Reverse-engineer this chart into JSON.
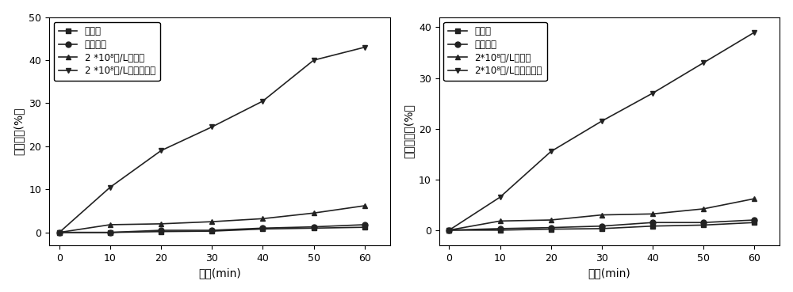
{
  "x": [
    0,
    10,
    20,
    30,
    40,
    50,
    60
  ],
  "chart1": {
    "ylabel": "磺胺嘧啶(%）",
    "xlabel": "时间(min)",
    "ylim": [
      -3,
      50
    ],
    "yticks": [
      0,
      10,
      20,
      30,
      40,
      50
    ],
    "series": {
      "dark_reaction": [
        0,
        0,
        0.2,
        0.3,
        0.8,
        1.0,
        1.2
      ],
      "direct_photolysis": [
        0,
        0,
        0.5,
        0.5,
        1.0,
        1.3,
        1.8
      ],
      "algae_dark": [
        0,
        1.8,
        2.0,
        2.5,
        3.2,
        4.5,
        6.2
      ],
      "algae_photo": [
        0,
        10.5,
        19.0,
        24.5,
        30.5,
        40.0,
        43.0
      ]
    },
    "legend": [
      "暗反应",
      "直接光解",
      "2 *10⁸个/L暗反应",
      "2 *10⁸个/L光催化反应"
    ]
  },
  "chart2": {
    "ylabel": "磺胺甲氧嗪(%）",
    "xlabel": "时间(min)",
    "ylim": [
      -3,
      42
    ],
    "yticks": [
      0,
      10,
      20,
      30,
      40
    ],
    "series": {
      "dark_reaction": [
        0,
        0,
        0.2,
        0.3,
        0.8,
        1.0,
        1.5
      ],
      "direct_photolysis": [
        0,
        0.3,
        0.5,
        0.8,
        1.5,
        1.5,
        2.0
      ],
      "algae_dark": [
        0,
        1.8,
        2.0,
        3.0,
        3.2,
        4.2,
        6.2
      ],
      "algae_photo": [
        0,
        6.5,
        15.5,
        21.5,
        27.0,
        33.0,
        39.0
      ]
    },
    "legend": [
      "暗反应",
      "直接光解",
      "2*10⁸个/L暗反应",
      "2*10⁸个/L光催化反应"
    ]
  },
  "colors": {
    "dark_reaction": "#222222",
    "direct_photolysis": "#222222",
    "algae_dark": "#222222",
    "algae_photo": "#222222"
  },
  "markers": {
    "dark_reaction": "s",
    "direct_photolysis": "o",
    "algae_dark": "^",
    "algae_photo": "v"
  },
  "bg_color": "#ffffff",
  "fontsize_label": 10,
  "fontsize_tick": 9,
  "fontsize_legend": 8.5
}
